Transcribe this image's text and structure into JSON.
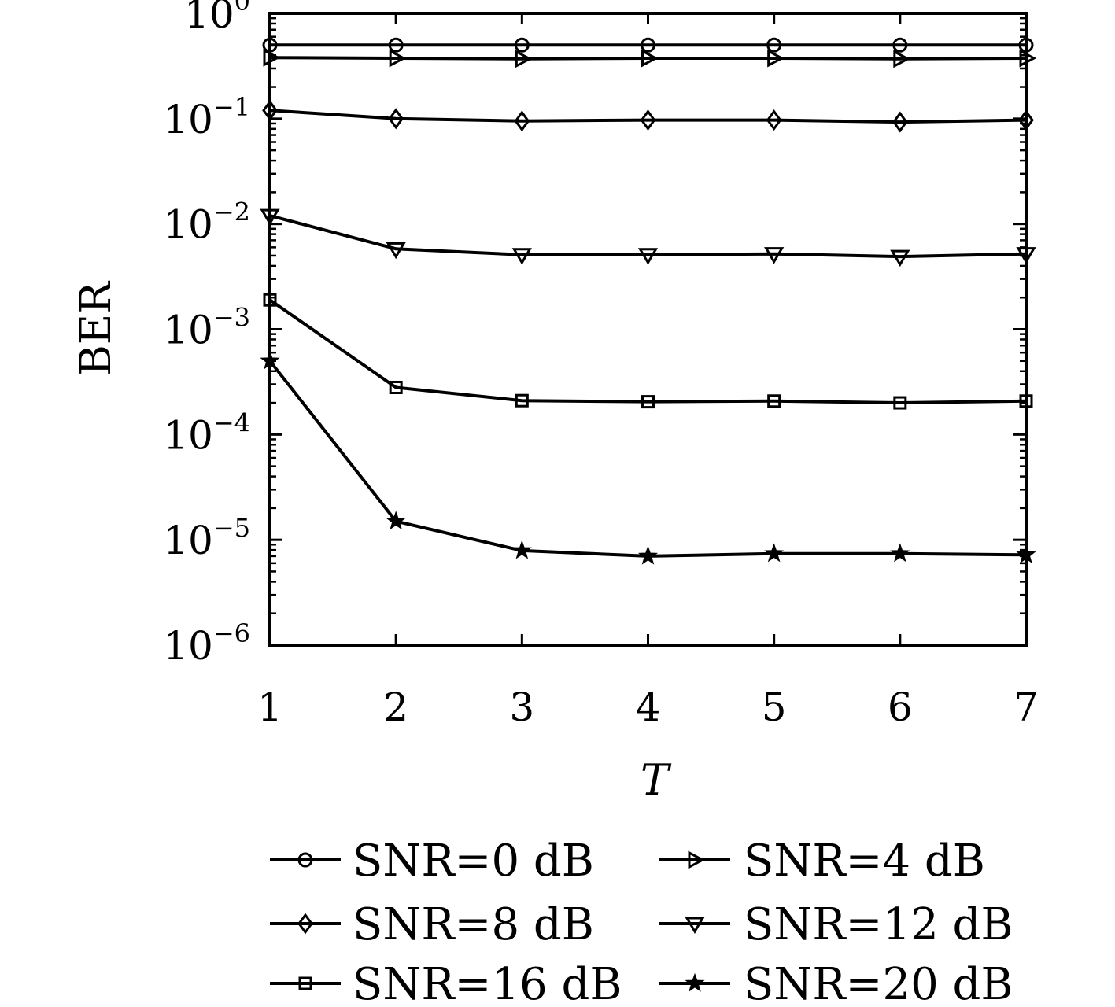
{
  "chart_data": {
    "type": "line",
    "title": "",
    "xlabel": "T",
    "ylabel": "BER",
    "x": [
      1,
      2,
      3,
      4,
      5,
      6,
      7
    ],
    "xlim": [
      1,
      7
    ],
    "ylim": [
      1e-06,
      1
    ],
    "yscale": "log",
    "y_tick_labels": [
      {
        "base": "10",
        "exp": "0"
      },
      {
        "base": "10",
        "exp": "−1"
      },
      {
        "base": "10",
        "exp": "−2"
      },
      {
        "base": "10",
        "exp": "−3"
      },
      {
        "base": "10",
        "exp": "−4"
      },
      {
        "base": "10",
        "exp": "−5"
      },
      {
        "base": "10",
        "exp": "−6"
      }
    ],
    "x_tick_labels": [
      "1",
      "2",
      "3",
      "4",
      "5",
      "6",
      "7"
    ],
    "grid": false,
    "legend_position": "bottom",
    "series": [
      {
        "name": "SNR=0 dB",
        "marker": "circle",
        "values": [
          0.5,
          0.5,
          0.5,
          0.5,
          0.5,
          0.5,
          0.5
        ]
      },
      {
        "name": "SNR=4 dB",
        "marker": "triangle-right",
        "values": [
          0.38,
          0.375,
          0.37,
          0.375,
          0.375,
          0.37,
          0.375
        ]
      },
      {
        "name": "SNR=8 dB",
        "marker": "diamond",
        "values": [
          0.12,
          0.1,
          0.095,
          0.097,
          0.097,
          0.093,
          0.097
        ]
      },
      {
        "name": "SNR=12 dB",
        "marker": "triangle-down",
        "values": [
          0.012,
          0.0058,
          0.0051,
          0.0051,
          0.0052,
          0.0049,
          0.0052
        ]
      },
      {
        "name": "SNR=16 dB",
        "marker": "square",
        "values": [
          0.0019,
          0.00028,
          0.00021,
          0.000205,
          0.000208,
          0.0002,
          0.000208
        ]
      },
      {
        "name": "SNR=20 dB",
        "marker": "star",
        "values": [
          0.0005,
          1.5e-05,
          7.9e-06,
          7e-06,
          7.4e-06,
          7.4e-06,
          7.2e-06
        ]
      }
    ]
  }
}
